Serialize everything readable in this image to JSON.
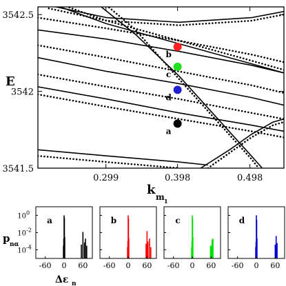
{
  "chart_data": [
    {
      "type": "line",
      "ylabel": "E",
      "xlabel_main": "k",
      "xlabel_sub": "m",
      "xlabel_subsub": "1",
      "xlim": [
        0.205,
        0.545
      ],
      "ylim": [
        3541.5,
        3542.55
      ],
      "xticks": [
        {
          "v": 0.299,
          "label": "0.299"
        },
        {
          "v": 0.398,
          "label": "0.398"
        },
        {
          "v": 0.498,
          "label": "0.498"
        }
      ],
      "yticks": [
        {
          "v": 3542.5,
          "label": "3542.5"
        },
        {
          "v": 3542.0,
          "label": "3542"
        },
        {
          "v": 3541.5,
          "label": "3541.5"
        }
      ],
      "solid_lines": [
        [
          [
            0.205,
            3542.4
          ],
          [
            0.3,
            3542.34
          ],
          [
            0.4,
            3542.26
          ],
          [
            0.5,
            3542.17
          ],
          [
            0.545,
            3542.12
          ]
        ],
        [
          [
            0.205,
            3542.22
          ],
          [
            0.3,
            3542.13
          ],
          [
            0.4,
            3542.05
          ],
          [
            0.5,
            3541.96
          ],
          [
            0.545,
            3541.91
          ]
        ],
        [
          [
            0.205,
            3542.03
          ],
          [
            0.3,
            3541.95
          ],
          [
            0.4,
            3541.86
          ],
          [
            0.5,
            3541.78
          ],
          [
            0.545,
            3541.74
          ]
        ],
        [
          [
            0.205,
            3541.62
          ],
          [
            0.3,
            3541.58
          ],
          [
            0.4,
            3541.54
          ],
          [
            0.44,
            3541.52
          ]
        ],
        [
          [
            0.22,
            3542.56
          ],
          [
            0.3,
            3542.48
          ],
          [
            0.4,
            3542.45
          ],
          [
            0.5,
            3542.48
          ],
          [
            0.545,
            3542.52
          ]
        ],
        [
          [
            0.23,
            3542.56
          ],
          [
            0.3,
            3542.44
          ],
          [
            0.4,
            3542.31
          ],
          [
            0.5,
            3542.18
          ],
          [
            0.545,
            3542.12
          ]
        ],
        [
          [
            0.29,
            3542.56
          ],
          [
            0.34,
            3542.37
          ],
          [
            0.4,
            3542.1
          ],
          [
            0.45,
            3541.84
          ],
          [
            0.5,
            3541.58
          ],
          [
            0.515,
            3541.5
          ]
        ],
        [
          [
            0.43,
            3541.5
          ],
          [
            0.47,
            3541.62
          ],
          [
            0.5,
            3541.72
          ],
          [
            0.53,
            3541.8
          ],
          [
            0.545,
            3541.82
          ]
        ]
      ],
      "dotted_lines": [
        [
          [
            0.205,
            3542.48
          ],
          [
            0.3,
            3542.41
          ],
          [
            0.4,
            3542.33
          ],
          [
            0.5,
            3542.24
          ],
          [
            0.545,
            3542.19
          ]
        ],
        [
          [
            0.205,
            3542.3
          ],
          [
            0.3,
            3542.22
          ],
          [
            0.4,
            3542.13
          ],
          [
            0.5,
            3542.04
          ],
          [
            0.545,
            3541.99
          ]
        ],
        [
          [
            0.205,
            3542.11
          ],
          [
            0.3,
            3542.03
          ],
          [
            0.4,
            3541.95
          ],
          [
            0.5,
            3541.86
          ],
          [
            0.545,
            3541.82
          ]
        ],
        [
          [
            0.205,
            3541.98
          ],
          [
            0.3,
            3541.9
          ],
          [
            0.4,
            3541.82
          ],
          [
            0.5,
            3541.74
          ],
          [
            0.545,
            3541.7
          ]
        ],
        [
          [
            0.205,
            3541.58
          ],
          [
            0.3,
            3541.54
          ],
          [
            0.4,
            3541.5
          ]
        ],
        [
          [
            0.22,
            3542.54
          ],
          [
            0.3,
            3542.46
          ],
          [
            0.4,
            3542.43
          ],
          [
            0.5,
            3542.46
          ],
          [
            0.545,
            3542.5
          ]
        ],
        [
          [
            0.24,
            3542.56
          ],
          [
            0.3,
            3542.46
          ],
          [
            0.4,
            3542.33
          ],
          [
            0.5,
            3542.2
          ],
          [
            0.545,
            3542.14
          ]
        ],
        [
          [
            0.3,
            3542.56
          ],
          [
            0.34,
            3542.4
          ],
          [
            0.4,
            3542.08
          ],
          [
            0.45,
            3541.82
          ],
          [
            0.5,
            3541.56
          ],
          [
            0.51,
            3541.5
          ]
        ],
        [
          [
            0.44,
            3541.5
          ],
          [
            0.47,
            3541.6
          ],
          [
            0.5,
            3541.7
          ],
          [
            0.53,
            3541.78
          ],
          [
            0.545,
            3541.8
          ]
        ]
      ],
      "markers": [
        {
          "label": "b",
          "x": 0.398,
          "y": 3542.29,
          "color": "#ff2020"
        },
        {
          "label": "c",
          "x": 0.398,
          "y": 3542.16,
          "color": "#20e020"
        },
        {
          "label": "d",
          "x": 0.398,
          "y": 3542.01,
          "color": "#2020d0"
        },
        {
          "label": "a",
          "x": 0.398,
          "y": 3541.79,
          "color": "#000000"
        }
      ]
    },
    {
      "type": "bar",
      "panels": [
        {
          "label": "a",
          "color": "#000000",
          "bars": [
            [
              -2,
              0.0003
            ],
            [
              -1,
              0.002
            ],
            [
              0,
              1.0
            ],
            [
              1,
              0.5
            ],
            [
              2,
              0.003
            ],
            [
              55,
              0.0004
            ],
            [
              60,
              0.012
            ],
            [
              65,
              0.0007
            ],
            [
              68,
              0.002
            ],
            [
              72,
              0.0003
            ]
          ]
        },
        {
          "label": "b",
          "color": "#ff0000",
          "bars": [
            [
              -2,
              0.0002
            ],
            [
              -1,
              0.001
            ],
            [
              0,
              1.0
            ],
            [
              1,
              0.4
            ],
            [
              2,
              0.002
            ],
            [
              57,
              0.0005
            ],
            [
              60,
              0.015
            ],
            [
              63,
              0.0009
            ],
            [
              68,
              0.002
            ],
            [
              72,
              0.0002
            ]
          ]
        },
        {
          "label": "c",
          "color": "#00e000",
          "bars": [
            [
              -2,
              0.0002
            ],
            [
              -1,
              0.001
            ],
            [
              0,
              1.0
            ],
            [
              1,
              0.4
            ],
            [
              2,
              0.003
            ],
            [
              58,
              0.0003
            ],
            [
              60,
              0.0003
            ],
            [
              63,
              0.0015
            ],
            [
              66,
              0.002
            ]
          ]
        },
        {
          "label": "d",
          "color": "#0000d0",
          "bars": [
            [
              -2,
              0.0002
            ],
            [
              -1,
              0.0008
            ],
            [
              0,
              1.0
            ],
            [
              1,
              0.3
            ],
            [
              2,
              0.002
            ],
            [
              60,
              0.0004
            ],
            [
              63,
              0.004
            ],
            [
              66,
              0.0006
            ]
          ]
        }
      ],
      "xlim": [
        -90,
        90
      ],
      "ylim_log": [
        1e-05,
        10
      ],
      "xticks": [
        {
          "v": -60,
          "label": "-60"
        },
        {
          "v": 0,
          "label": "0"
        },
        {
          "v": 60,
          "label": "60"
        }
      ],
      "yticks_exp": [
        {
          "exp": 0,
          "base": "10",
          "sup": "0"
        },
        {
          "exp": -2,
          "base": "10",
          "sup": "-2"
        },
        {
          "exp": -4,
          "base": "10",
          "sup": "-4"
        }
      ],
      "ylabel_main": "p",
      "ylabel_sub": "nα",
      "xlabel_main": "Δε",
      "xlabel_sub": "n"
    }
  ]
}
